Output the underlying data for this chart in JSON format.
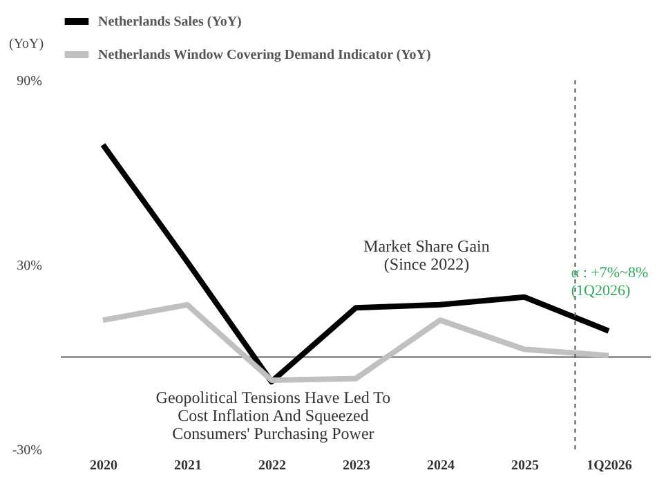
{
  "chart_data": {
    "type": "line",
    "ylabel": "(YoY)",
    "categories": [
      "2020",
      "2021",
      "2022",
      "2023",
      "2024",
      "2025",
      "1Q2026"
    ],
    "series": [
      {
        "name": "Netherlands Sales (YoY)",
        "color": "#000000",
        "values": [
          69,
          31,
          -8,
          16,
          17,
          19.5,
          8.5
        ]
      },
      {
        "name": "Netherlands Window Covering Demand Indicator (YoY)",
        "color": "#c0c0c0",
        "values": [
          12,
          17,
          -7.5,
          -7,
          12,
          2.5,
          0.5
        ]
      }
    ],
    "ylim": [
      -30,
      90
    ],
    "yticks": [
      {
        "value": 90,
        "label": "90%"
      },
      {
        "value": 30,
        "label": "30%"
      },
      {
        "value": -30,
        "label": "-30%"
      }
    ],
    "grid": false,
    "legend": "top",
    "marker": "none",
    "line_style": "solid",
    "ref_lines": [
      {
        "axis": "y",
        "value": 0,
        "color": "#808080",
        "line_style": "solid"
      },
      {
        "axis": "x",
        "value": "1Q2026",
        "color": "#555555",
        "line_style": "dashed"
      }
    ],
    "annotations": [
      "Market Share Gain\n(Since 2022)",
      "Geopolitical Tensions Have Led To\nCost Inflation And Squeezed\nConsumers' Purchasing Power",
      "α : +7%~8%\n(1Q2026)"
    ]
  }
}
